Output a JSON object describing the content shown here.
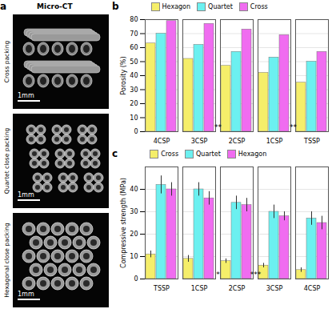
{
  "panel_a": {
    "panel": "a",
    "title": "Micro-CT",
    "images": [
      {
        "name": "Cross packing",
        "scale_bar": "1mm"
      },
      {
        "name": "Quartet close packing",
        "scale_bar": "1mm"
      },
      {
        "name": "Hexagonal close packing",
        "scale_bar": "1mm"
      }
    ]
  },
  "chart_data": [
    {
      "type": "bar",
      "panel": "b",
      "y_label": "Porosity (%)",
      "categories": [
        "4CSP",
        "3CSP",
        "2CSP",
        "1CSP",
        "TSSP"
      ],
      "series": [
        {
          "name": "Hexagon",
          "color": "#f5ee6a",
          "values": [
            63,
            52,
            47,
            42,
            35
          ]
        },
        {
          "name": "Quartet",
          "color": "#6cf0f0",
          "values": [
            70,
            62,
            57,
            53,
            50
          ]
        },
        {
          "name": "Cross",
          "color": "#f06cf0",
          "values": [
            79,
            77,
            73,
            69,
            57
          ]
        }
      ],
      "ylim": [
        0,
        80
      ],
      "yticks": [
        0,
        10,
        20,
        30,
        40,
        50,
        60,
        70,
        80
      ],
      "grid": true,
      "legend": "top",
      "annotations": [
        {
          "text": "**",
          "between": [
            "3CSP",
            "2CSP"
          ]
        },
        {
          "text": "**",
          "between": [
            "1CSP",
            "TSSP"
          ]
        }
      ]
    },
    {
      "type": "bar",
      "panel": "c",
      "y_label": "Compressive strength (MPa)",
      "categories": [
        "TSSP",
        "1CSP",
        "2CSP",
        "3CSP",
        "4CSP"
      ],
      "series": [
        {
          "name": "Cross",
          "color": "#f5ee6a",
          "values": [
            11,
            9,
            8,
            6,
            4
          ],
          "errors": [
            1.5,
            1.5,
            1,
            1,
            1
          ]
        },
        {
          "name": "Quartet",
          "color": "#6cf0f0",
          "values": [
            42,
            40,
            34,
            30,
            27
          ],
          "errors": [
            4,
            3,
            3,
            3,
            3
          ]
        },
        {
          "name": "Hexagon",
          "color": "#f06cf0",
          "values": [
            40,
            36,
            33,
            28,
            25
          ],
          "errors": [
            3,
            3,
            3,
            2,
            3
          ]
        }
      ],
      "ylim": [
        0,
        50
      ],
      "yticks": [
        0,
        10,
        20,
        30,
        40
      ],
      "grid": true,
      "legend": "top",
      "annotations": [
        {
          "text": "*",
          "between": [
            "1CSP",
            "2CSP"
          ]
        },
        {
          "text": "***",
          "between": [
            "2CSP",
            "3CSP"
          ]
        }
      ]
    }
  ]
}
